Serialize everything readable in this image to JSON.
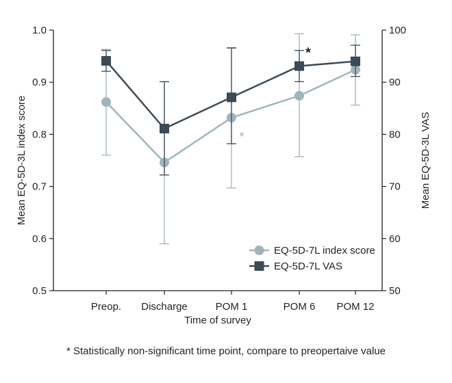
{
  "chart_data": {
    "type": "line",
    "categories": [
      "Preop.",
      "Discharge",
      "POM 1",
      "POM 6",
      "POM 12"
    ],
    "xlabel": "Time of survey",
    "ylabel_left": "Mean EQ-5D-3L index score",
    "ylabel_right": "Mean EQ-5D-3L VAS",
    "ylim_left": [
      0.5,
      1.0
    ],
    "ylim_right": [
      50,
      100
    ],
    "yticks_left": [
      "0.5",
      "0.6",
      "0.7",
      "0.8",
      "0.9",
      "1.0"
    ],
    "yticks_right": [
      "50",
      "60",
      "70",
      "80",
      "90",
      "100"
    ],
    "grid": false,
    "legend_position": "bottom-right",
    "series": [
      {
        "name": "EQ-5D-7L index score",
        "axis": "left",
        "marker": "circle",
        "color": "#9fb5bb",
        "values": [
          0.862,
          0.746,
          0.832,
          0.874,
          0.924
        ],
        "err_low": [
          0.76,
          0.59,
          0.697,
          0.757,
          0.856
        ],
        "err_high": [
          0.963,
          0.901,
          0.965,
          0.993,
          0.991
        ]
      },
      {
        "name": "EQ-5D-7L VAS",
        "axis": "right",
        "marker": "square",
        "color": "#3b4a55",
        "values": [
          94.1,
          81.1,
          87.1,
          93.1,
          94.0
        ],
        "err_low": [
          92.1,
          72.2,
          78.2,
          90.1,
          91.1
        ],
        "err_high": [
          96.1,
          90.1,
          96.6,
          96.1,
          97.1
        ]
      }
    ],
    "annotations": [
      {
        "text": "*",
        "series": "EQ-5D-7L index score",
        "category": "POM 1",
        "color": "#9fb5bb"
      },
      {
        "text": "*",
        "series": "EQ-5D-7L VAS",
        "category": "POM 6",
        "color": "#231f20"
      }
    ]
  },
  "footnote": "* Statistically non-significant time point, compare to preopertaive value"
}
